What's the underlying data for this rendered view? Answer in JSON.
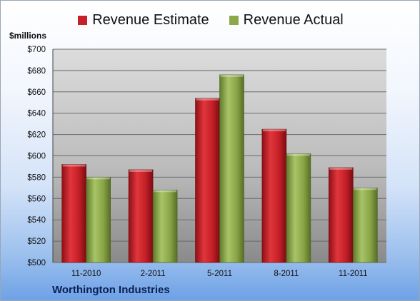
{
  "chart_data": {
    "type": "bar",
    "categories": [
      "11-2010",
      "2-2011",
      "5-2011",
      "8-2011",
      "11-2011"
    ],
    "series": [
      {
        "name": "Revenue Estimate",
        "values": [
          592,
          587,
          654,
          625,
          589
        ],
        "color": "#c8202a"
      },
      {
        "name": "Revenue Actual",
        "values": [
          580,
          568,
          676,
          602,
          570
        ],
        "color": "#8da84a"
      }
    ],
    "ylabel": "$millions",
    "ylim": [
      500,
      700
    ],
    "yticks": [
      500,
      520,
      540,
      560,
      580,
      600,
      620,
      640,
      660,
      680,
      700
    ],
    "ytick_labels": [
      "$500",
      "$520",
      "$540",
      "$560",
      "$580",
      "$600",
      "$620",
      "$640",
      "$660",
      "$680",
      "$700"
    ],
    "grid": true,
    "legend_position": "top"
  },
  "footer": {
    "company": "Worthington Industries"
  },
  "colors": {
    "plot_background_top": "#d8d8d8",
    "plot_background_bottom": "#8c8c8c"
  }
}
